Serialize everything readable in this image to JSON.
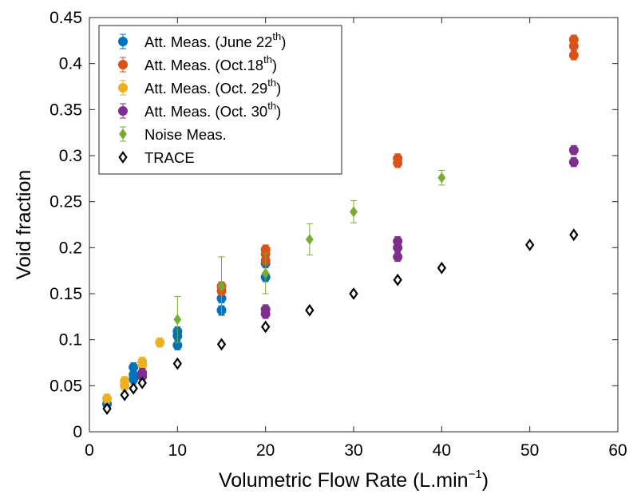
{
  "chart_data": {
    "type": "scatter",
    "xlabel": "Volumetric Flow Rate (L.min",
    "xlabel_sup": "−1",
    "xlabel_end": ")",
    "ylabel": "Void fraction",
    "xlim": [
      0,
      60
    ],
    "ylim": [
      0,
      0.45
    ],
    "xticks": [
      0,
      10,
      20,
      30,
      40,
      50,
      60
    ],
    "yticks": [
      0,
      0.05,
      0.1,
      0.15,
      0.2,
      0.25,
      0.3,
      0.35,
      0.4,
      0.45
    ],
    "xtick_labels": [
      "0",
      "10",
      "20",
      "30",
      "40",
      "50",
      "60"
    ],
    "ytick_labels": [
      "0",
      "0.05",
      "0.1",
      "0.15",
      "0.2",
      "0.25",
      "0.3",
      "0.35",
      "0.4",
      "0.45"
    ],
    "grid": false,
    "legend_position": "top-left",
    "series": [
      {
        "name": "Att. Meas. (June 22",
        "name_sup": "th",
        "name_end": ")",
        "marker": "circle",
        "color": "#0072BD",
        "points": [
          {
            "x": 2,
            "y": 0.03,
            "err": 0.005
          },
          {
            "x": 5,
            "y": 0.07,
            "err": 0.005
          },
          {
            "x": 5,
            "y": 0.062,
            "err": 0.005
          },
          {
            "x": 5,
            "y": 0.057,
            "err": 0.005
          },
          {
            "x": 10,
            "y": 0.109,
            "err": 0.005
          },
          {
            "x": 10,
            "y": 0.104,
            "err": 0.005
          },
          {
            "x": 10,
            "y": 0.094,
            "err": 0.005
          },
          {
            "x": 15,
            "y": 0.145,
            "err": 0.005
          },
          {
            "x": 15,
            "y": 0.132,
            "err": 0.005
          },
          {
            "x": 20,
            "y": 0.183,
            "err": 0.005
          },
          {
            "x": 20,
            "y": 0.168,
            "err": 0.005
          }
        ]
      },
      {
        "name": "Att. Meas. (Oct.18",
        "name_sup": "th",
        "name_end": ")",
        "marker": "circle",
        "color": "#D95319",
        "points": [
          {
            "x": 15,
            "y": 0.158,
            "err": 0.005
          },
          {
            "x": 15,
            "y": 0.153,
            "err": 0.005
          },
          {
            "x": 20,
            "y": 0.198,
            "err": 0.005
          },
          {
            "x": 20,
            "y": 0.193,
            "err": 0.005
          },
          {
            "x": 20,
            "y": 0.186,
            "err": 0.005
          },
          {
            "x": 35,
            "y": 0.297,
            "err": 0.005
          },
          {
            "x": 35,
            "y": 0.292,
            "err": 0.005
          },
          {
            "x": 55,
            "y": 0.426,
            "err": 0.005
          },
          {
            "x": 55,
            "y": 0.419,
            "err": 0.005
          },
          {
            "x": 55,
            "y": 0.409,
            "err": 0.005
          }
        ]
      },
      {
        "name": "Att. Meas. (Oct. 29",
        "name_sup": "th",
        "name_end": ")",
        "marker": "circle",
        "color": "#EDB120",
        "points": [
          {
            "x": 2,
            "y": 0.036,
            "err": 0.005
          },
          {
            "x": 4,
            "y": 0.055,
            "err": 0.005
          },
          {
            "x": 4,
            "y": 0.05,
            "err": 0.005
          },
          {
            "x": 6,
            "y": 0.076,
            "err": 0.005
          },
          {
            "x": 6,
            "y": 0.072,
            "err": 0.005
          },
          {
            "x": 8,
            "y": 0.097,
            "err": 0.005
          }
        ]
      },
      {
        "name": "Att. Meas. (Oct. 30",
        "name_sup": "th",
        "name_end": ")",
        "marker": "circle",
        "color": "#7E2F8E",
        "points": [
          {
            "x": 6,
            "y": 0.064,
            "err": 0.005
          },
          {
            "x": 6,
            "y": 0.06,
            "err": 0.005
          },
          {
            "x": 20,
            "y": 0.133,
            "err": 0.005
          },
          {
            "x": 20,
            "y": 0.128,
            "err": 0.005
          },
          {
            "x": 35,
            "y": 0.207,
            "err": 0.005
          },
          {
            "x": 35,
            "y": 0.2,
            "err": 0.005
          },
          {
            "x": 35,
            "y": 0.19,
            "err": 0.005
          },
          {
            "x": 55,
            "y": 0.306,
            "err": 0.005
          },
          {
            "x": 55,
            "y": 0.293,
            "err": 0.005
          }
        ]
      },
      {
        "name": "Noise Meas.",
        "marker": "diamond",
        "color": "#77AC30",
        "points": [
          {
            "x": 10,
            "y": 0.122,
            "err": 0.025
          },
          {
            "x": 15,
            "y": 0.158,
            "err": 0.032
          },
          {
            "x": 20,
            "y": 0.172,
            "err": 0.022
          },
          {
            "x": 25,
            "y": 0.209,
            "err": 0.017
          },
          {
            "x": 30,
            "y": 0.239,
            "err": 0.012
          },
          {
            "x": 40,
            "y": 0.276,
            "err": 0.008
          }
        ]
      },
      {
        "name": "TRACE",
        "marker": "diamond-open",
        "color": "#000000",
        "points": [
          {
            "x": 2,
            "y": 0.025
          },
          {
            "x": 4,
            "y": 0.04
          },
          {
            "x": 5,
            "y": 0.047
          },
          {
            "x": 6,
            "y": 0.053
          },
          {
            "x": 10,
            "y": 0.074
          },
          {
            "x": 15,
            "y": 0.095
          },
          {
            "x": 20,
            "y": 0.114
          },
          {
            "x": 25,
            "y": 0.132
          },
          {
            "x": 30,
            "y": 0.15
          },
          {
            "x": 35,
            "y": 0.165
          },
          {
            "x": 40,
            "y": 0.178
          },
          {
            "x": 50,
            "y": 0.203
          },
          {
            "x": 55,
            "y": 0.214
          }
        ]
      }
    ]
  }
}
